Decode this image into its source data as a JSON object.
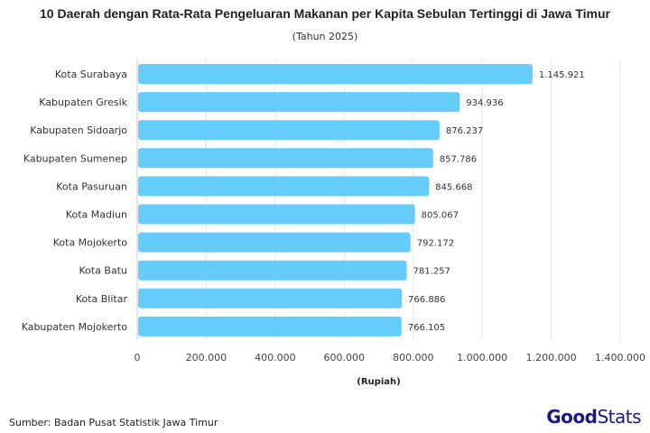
{
  "chart_data": {
    "type": "bar",
    "orientation": "horizontal",
    "title": "10 Daerah dengan Rata-Rata Pengeluaran Makanan per Kapita Sebulan Tertinggi di Jawa Timur",
    "subtitle": "(Tahun 2025)",
    "xlabel": "(Rupiah)",
    "ylabel": "",
    "xlim": [
      0,
      1400000
    ],
    "xticks": [
      0,
      200000,
      400000,
      600000,
      800000,
      1000000,
      1200000,
      1400000
    ],
    "xtick_labels": [
      "0",
      "200.000",
      "400.000",
      "600.000",
      "800.000",
      "1.000.000",
      "1.200.000",
      "1.400.000"
    ],
    "categories": [
      "Kota Surabaya",
      "Kabupaten Gresik",
      "Kabupaten Sidoarjo",
      "Kabupaten Sumenep",
      "Kota Pasuruan",
      "Kota Madiun",
      "Kota Mojokerto",
      "Kota Batu",
      "Kota Blitar",
      "Kabupaten Mojokerto"
    ],
    "values": [
      1145921,
      934936,
      876237,
      857786,
      845668,
      805067,
      792172,
      781257,
      766886,
      766105
    ],
    "value_labels": [
      "1.145.921",
      "934.936",
      "876.237",
      "857.786",
      "845.668",
      "805.067",
      "792.172",
      "781.257",
      "766.886",
      "766.105"
    ],
    "grid": true,
    "bar_color": "#66ccfc"
  },
  "source": "Sumber: Badan Pusat Statistik Jawa Timur",
  "logo": {
    "part1": "Good",
    "part2": "Stats",
    "color": "#1a1a7e"
  }
}
